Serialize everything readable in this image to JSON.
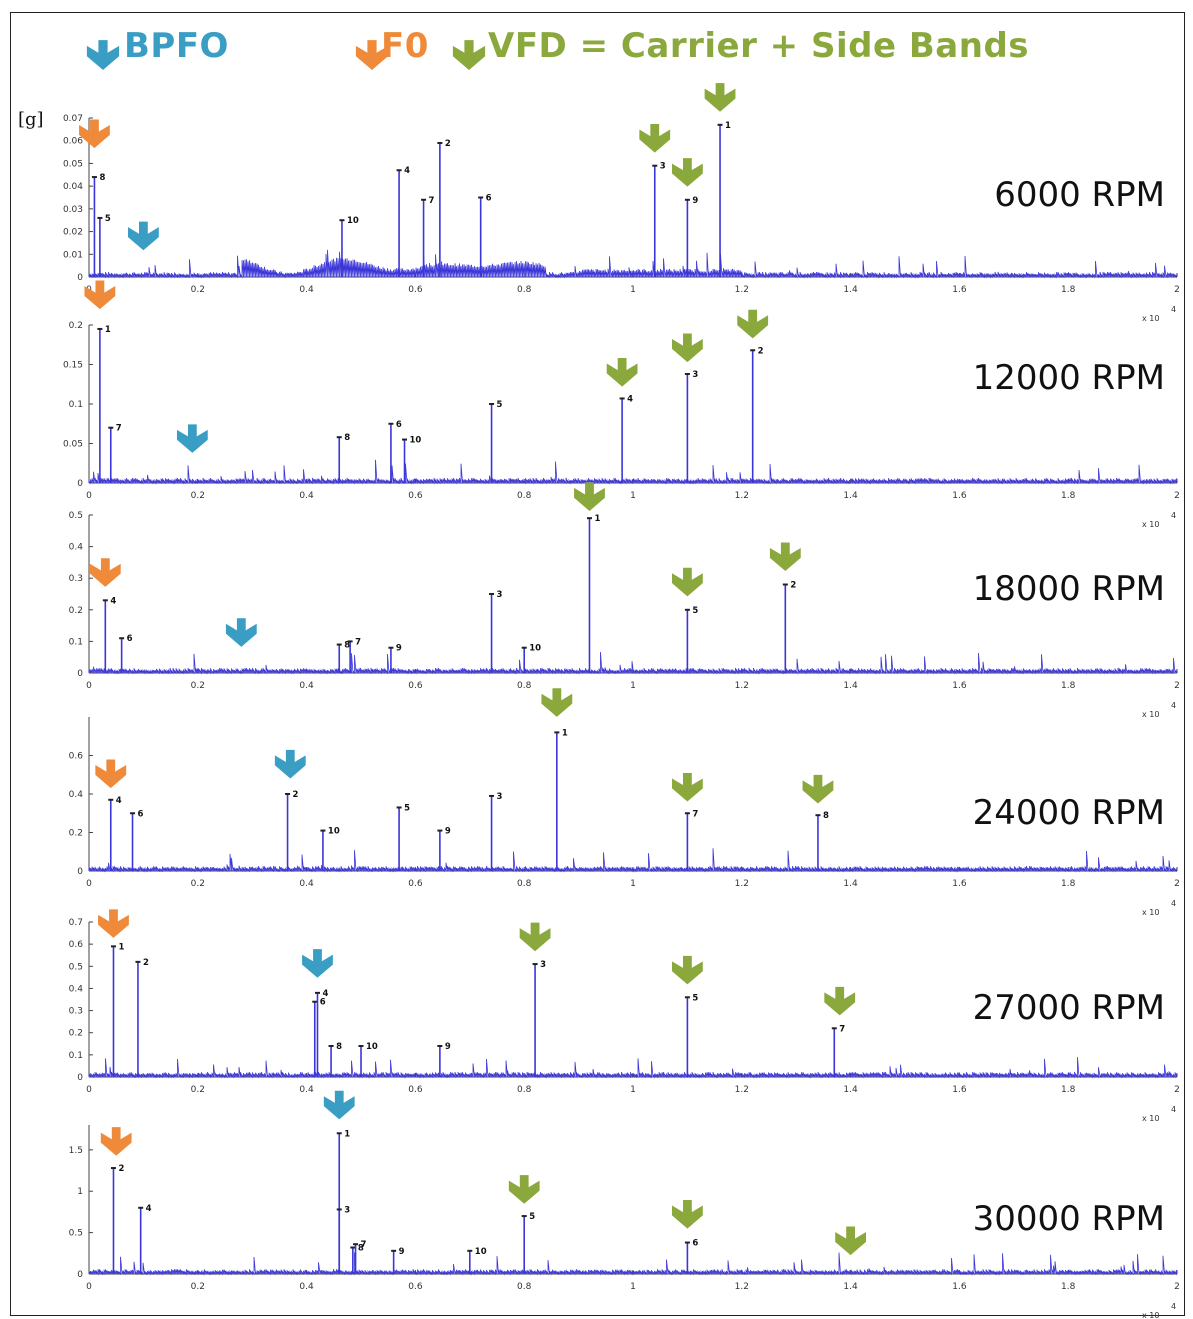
{
  "legend": {
    "bpfo": {
      "label": "BPFO",
      "color": "#3a9ec4"
    },
    "f0": {
      "label": "F0",
      "color": "#ef8a3a"
    },
    "vfd": {
      "label": "VFD = Carrier + Side Bands",
      "color": "#8aa83c"
    }
  },
  "y_unit": "[g]",
  "x_exponent_label": "x 10",
  "x_exponent_power": "4",
  "chart_data": [
    {
      "type": "line",
      "title": "6000 RPM",
      "xlim": [
        0,
        2
      ],
      "ylim": [
        0,
        0.07
      ],
      "xticks": [
        "0",
        "0.2",
        "0.4",
        "0.6",
        "0.8",
        "1",
        "1.2",
        "1.4",
        "1.6",
        "1.8",
        "2"
      ],
      "yticks": [
        {
          "v": 0,
          "t": "0"
        },
        {
          "v": 0.01,
          "t": "0.01"
        },
        {
          "v": 0.02,
          "t": "0.02"
        },
        {
          "v": 0.03,
          "t": "0.03"
        },
        {
          "v": 0.04,
          "t": "0.04"
        },
        {
          "v": 0.05,
          "t": "0.05"
        },
        {
          "v": 0.06,
          "t": "0.06"
        },
        {
          "v": 0.07,
          "t": "0.07"
        }
      ],
      "peaks": [
        {
          "x": 0.01,
          "y": 0.044,
          "label": "8"
        },
        {
          "x": 0.02,
          "y": 0.026,
          "label": "5"
        },
        {
          "x": 0.57,
          "y": 0.047,
          "label": "4"
        },
        {
          "x": 0.645,
          "y": 0.059,
          "label": "2"
        },
        {
          "x": 0.615,
          "y": 0.034,
          "label": "7"
        },
        {
          "x": 0.72,
          "y": 0.035,
          "label": "6"
        },
        {
          "x": 0.465,
          "y": 0.025,
          "label": "10"
        },
        {
          "x": 1.04,
          "y": 0.049,
          "label": "3"
        },
        {
          "x": 1.1,
          "y": 0.034,
          "label": "9"
        },
        {
          "x": 1.16,
          "y": 0.067,
          "label": "1"
        }
      ],
      "markers": [
        {
          "kind": "f0",
          "x": 0.01,
          "y": 0.055
        },
        {
          "kind": "bpfo",
          "x": 0.1,
          "y": 0.01
        },
        {
          "kind": "vfd",
          "x": 1.04,
          "y": 0.053
        },
        {
          "kind": "vfd",
          "x": 1.1,
          "y": 0.038
        },
        {
          "kind": "vfd",
          "x": 1.16,
          "y": 0.071
        }
      ]
    },
    {
      "type": "line",
      "title": "12000 RPM",
      "xlim": [
        0,
        2
      ],
      "ylim": [
        0,
        0.2
      ],
      "xticks": [
        "0",
        "0.2",
        "0.4",
        "0.6",
        "0.8",
        "1",
        "1.2",
        "1.4",
        "1.6",
        "1.8",
        "2"
      ],
      "yticks": [
        {
          "v": 0,
          "t": "0"
        },
        {
          "v": 0.05,
          "t": "0.05"
        },
        {
          "v": 0.1,
          "t": "0.1"
        },
        {
          "v": 0.15,
          "t": "0.15"
        },
        {
          "v": 0.2,
          "t": "0.2"
        }
      ],
      "peaks": [
        {
          "x": 0.02,
          "y": 0.195,
          "label": "1"
        },
        {
          "x": 0.04,
          "y": 0.07,
          "label": "7"
        },
        {
          "x": 0.46,
          "y": 0.058,
          "label": "8"
        },
        {
          "x": 0.555,
          "y": 0.075,
          "label": "6"
        },
        {
          "x": 0.58,
          "y": 0.055,
          "label": "10"
        },
        {
          "x": 0.74,
          "y": 0.1,
          "label": "5"
        },
        {
          "x": 0.98,
          "y": 0.107,
          "label": "4"
        },
        {
          "x": 1.1,
          "y": 0.138,
          "label": "3"
        },
        {
          "x": 1.22,
          "y": 0.168,
          "label": "2"
        }
      ],
      "markers": [
        {
          "kind": "f0",
          "x": 0.02,
          "y": 0.215
        },
        {
          "kind": "bpfo",
          "x": 0.19,
          "y": 0.033
        },
        {
          "kind": "vfd",
          "x": 0.98,
          "y": 0.117
        },
        {
          "kind": "vfd",
          "x": 1.1,
          "y": 0.148
        },
        {
          "kind": "vfd",
          "x": 1.22,
          "y": 0.178
        }
      ]
    },
    {
      "type": "line",
      "title": "18000 RPM",
      "xlim": [
        0,
        2
      ],
      "ylim": [
        0,
        0.5
      ],
      "xticks": [
        "0",
        "0.2",
        "0.4",
        "0.6",
        "0.8",
        "1",
        "1.2",
        "1.4",
        "1.6",
        "1.8",
        "2"
      ],
      "yticks": [
        {
          "v": 0,
          "t": "0"
        },
        {
          "v": 0.1,
          "t": "0.1"
        },
        {
          "v": 0.2,
          "t": "0.2"
        },
        {
          "v": 0.3,
          "t": "0.3"
        },
        {
          "v": 0.4,
          "t": "0.4"
        },
        {
          "v": 0.5,
          "t": "0.5"
        }
      ],
      "peaks": [
        {
          "x": 0.03,
          "y": 0.23,
          "label": "4"
        },
        {
          "x": 0.06,
          "y": 0.11,
          "label": "6"
        },
        {
          "x": 0.46,
          "y": 0.09,
          "label": "8"
        },
        {
          "x": 0.48,
          "y": 0.1,
          "label": "7"
        },
        {
          "x": 0.555,
          "y": 0.08,
          "label": "9"
        },
        {
          "x": 0.74,
          "y": 0.25,
          "label": "3"
        },
        {
          "x": 0.8,
          "y": 0.08,
          "label": "10"
        },
        {
          "x": 0.92,
          "y": 0.49,
          "label": "1"
        },
        {
          "x": 1.1,
          "y": 0.2,
          "label": "5"
        },
        {
          "x": 1.28,
          "y": 0.28,
          "label": "2"
        }
      ],
      "markers": [
        {
          "kind": "f0",
          "x": 0.03,
          "y": 0.26
        },
        {
          "kind": "bpfo",
          "x": 0.28,
          "y": 0.07
        },
        {
          "kind": "vfd",
          "x": 0.92,
          "y": 0.5
        },
        {
          "kind": "vfd",
          "x": 1.1,
          "y": 0.23
        },
        {
          "kind": "vfd",
          "x": 1.28,
          "y": 0.31
        }
      ]
    },
    {
      "type": "line",
      "title": "24000 RPM",
      "xlim": [
        0,
        2
      ],
      "ylim": [
        0,
        0.8
      ],
      "xticks": [
        "0",
        "0.2",
        "0.4",
        "0.6",
        "0.8",
        "1",
        "1.2",
        "1.4",
        "1.6",
        "1.8",
        "2"
      ],
      "yticks": [
        {
          "v": 0,
          "t": "0"
        },
        {
          "v": 0.2,
          "t": "0.2"
        },
        {
          "v": 0.4,
          "t": "0.4"
        },
        {
          "v": 0.6,
          "t": "0.6"
        }
      ],
      "peaks": [
        {
          "x": 0.04,
          "y": 0.37,
          "label": "4"
        },
        {
          "x": 0.08,
          "y": 0.3,
          "label": "6"
        },
        {
          "x": 0.365,
          "y": 0.4,
          "label": "2"
        },
        {
          "x": 0.43,
          "y": 0.21,
          "label": "10"
        },
        {
          "x": 0.57,
          "y": 0.33,
          "label": "5"
        },
        {
          "x": 0.645,
          "y": 0.21,
          "label": "9"
        },
        {
          "x": 0.74,
          "y": 0.39,
          "label": "3"
        },
        {
          "x": 0.86,
          "y": 0.72,
          "label": "1"
        },
        {
          "x": 1.1,
          "y": 0.3,
          "label": "7"
        },
        {
          "x": 1.34,
          "y": 0.29,
          "label": "8"
        }
      ],
      "markers": [
        {
          "kind": "f0",
          "x": 0.04,
          "y": 0.41
        },
        {
          "kind": "bpfo",
          "x": 0.37,
          "y": 0.46
        },
        {
          "kind": "vfd",
          "x": 0.86,
          "y": 0.78
        },
        {
          "kind": "vfd",
          "x": 1.1,
          "y": 0.34
        },
        {
          "kind": "vfd",
          "x": 1.34,
          "y": 0.33
        }
      ]
    },
    {
      "type": "line",
      "title": "27000 RPM",
      "xlim": [
        0,
        2
      ],
      "ylim": [
        0,
        0.7
      ],
      "xticks": [
        "0",
        "0.2",
        "0.4",
        "0.6",
        "0.8",
        "1",
        "1.2",
        "1.4",
        "1.6",
        "1.8",
        "2"
      ],
      "yticks": [
        {
          "v": 0,
          "t": "0"
        },
        {
          "v": 0.1,
          "t": "0.1"
        },
        {
          "v": 0.2,
          "t": "0.2"
        },
        {
          "v": 0.3,
          "t": "0.3"
        },
        {
          "v": 0.4,
          "t": "0.4"
        },
        {
          "v": 0.5,
          "t": "0.5"
        },
        {
          "v": 0.6,
          "t": "0.6"
        },
        {
          "v": 0.7,
          "t": "0.7"
        }
      ],
      "peaks": [
        {
          "x": 0.045,
          "y": 0.59,
          "label": "1"
        },
        {
          "x": 0.09,
          "y": 0.52,
          "label": "2"
        },
        {
          "x": 0.415,
          "y": 0.34,
          "label": "6"
        },
        {
          "x": 0.42,
          "y": 0.38,
          "label": "4"
        },
        {
          "x": 0.445,
          "y": 0.14,
          "label": "8"
        },
        {
          "x": 0.5,
          "y": 0.14,
          "label": "10"
        },
        {
          "x": 0.645,
          "y": 0.14,
          "label": "9"
        },
        {
          "x": 0.82,
          "y": 0.51,
          "label": "3"
        },
        {
          "x": 1.1,
          "y": 0.36,
          "label": "5"
        },
        {
          "x": 1.37,
          "y": 0.22,
          "label": "7"
        }
      ],
      "markers": [
        {
          "kind": "f0",
          "x": 0.045,
          "y": 0.61
        },
        {
          "kind": "bpfo",
          "x": 0.42,
          "y": 0.43
        },
        {
          "kind": "vfd",
          "x": 0.82,
          "y": 0.55
        },
        {
          "kind": "vfd",
          "x": 1.1,
          "y": 0.4
        },
        {
          "kind": "vfd",
          "x": 1.38,
          "y": 0.26
        }
      ]
    },
    {
      "type": "line",
      "title": "30000 RPM",
      "xlim": [
        0,
        2
      ],
      "ylim": [
        0,
        1.8
      ],
      "xticks": [
        "0",
        "0.2",
        "0.4",
        "0.6",
        "0.8",
        "1",
        "1.2",
        "1.4",
        "1.6",
        "1.8",
        "2"
      ],
      "yticks": [
        {
          "v": 0,
          "t": "0"
        },
        {
          "v": 0.5,
          "t": "0.5"
        },
        {
          "v": 1,
          "t": "1"
        },
        {
          "v": 1.5,
          "t": "1.5"
        }
      ],
      "peaks": [
        {
          "x": 0.045,
          "y": 1.28,
          "label": "2"
        },
        {
          "x": 0.095,
          "y": 0.8,
          "label": "4"
        },
        {
          "x": 0.46,
          "y": 1.7,
          "label": "1"
        },
        {
          "x": 0.46,
          "y": 0.78,
          "label": "3"
        },
        {
          "x": 0.485,
          "y": 0.32,
          "label": "8"
        },
        {
          "x": 0.49,
          "y": 0.36,
          "label": "7"
        },
        {
          "x": 0.56,
          "y": 0.28,
          "label": "9"
        },
        {
          "x": 0.7,
          "y": 0.28,
          "label": "10"
        },
        {
          "x": 0.8,
          "y": 0.7,
          "label": "5"
        },
        {
          "x": 1.1,
          "y": 0.38,
          "label": "6"
        }
      ],
      "markers": [
        {
          "kind": "f0",
          "x": 0.05,
          "y": 1.38
        },
        {
          "kind": "bpfo",
          "x": 0.46,
          "y": 1.82
        },
        {
          "kind": "vfd",
          "x": 0.8,
          "y": 0.8
        },
        {
          "kind": "vfd",
          "x": 1.1,
          "y": 0.5
        },
        {
          "kind": "vfd",
          "x": 1.4,
          "y": 0.18
        }
      ]
    }
  ]
}
